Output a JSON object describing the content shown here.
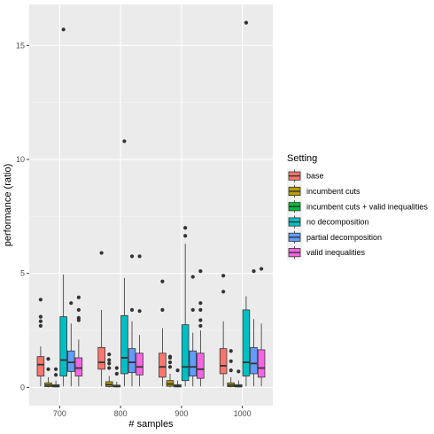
{
  "chart_data": {
    "type": "boxplot",
    "xlabel": "# samples",
    "ylabel": "performance (ratio)",
    "categories": [
      "700",
      "800",
      "900",
      "1000"
    ],
    "ylim": [
      -0.8,
      16.8
    ],
    "yticks": [
      0,
      5,
      10,
      15
    ],
    "grid": true,
    "legend": {
      "title": "Setting",
      "position": "right"
    },
    "series": [
      {
        "name": "base",
        "color": "#F8766D",
        "boxes": [
          {
            "min": 0.05,
            "q1": 0.5,
            "median": 1.0,
            "q3": 1.35,
            "max": 1.8,
            "outliers": [
              2.7,
              2.9,
              3.1,
              3.85
            ]
          },
          {
            "min": 0.05,
            "q1": 0.8,
            "median": 1.1,
            "q3": 1.75,
            "max": 3.4,
            "outliers": [
              5.9
            ]
          },
          {
            "min": 0.05,
            "q1": 0.45,
            "median": 0.9,
            "q3": 1.5,
            "max": 2.6,
            "outliers": [
              3.4,
              4.65
            ]
          },
          {
            "min": 0.05,
            "q1": 0.6,
            "median": 0.95,
            "q3": 1.7,
            "max": 2.9,
            "outliers": [
              4.2,
              4.9
            ]
          }
        ]
      },
      {
        "name": "incumbent cuts",
        "color": "#B79F00",
        "boxes": [
          {
            "min": 0.0,
            "q1": 0.03,
            "median": 0.1,
            "q3": 0.2,
            "max": 0.45,
            "outliers": [
              0.8,
              1.25
            ]
          },
          {
            "min": 0.0,
            "q1": 0.04,
            "median": 0.12,
            "q3": 0.25,
            "max": 0.5,
            "outliers": [
              0.85,
              1.05,
              1.2,
              1.45
            ]
          },
          {
            "min": 0.0,
            "q1": 0.05,
            "median": 0.15,
            "q3": 0.3,
            "max": 0.6,
            "outliers": [
              0.9,
              1.1,
              1.3,
              1.35
            ]
          },
          {
            "min": 0.0,
            "q1": 0.03,
            "median": 0.1,
            "q3": 0.2,
            "max": 0.45,
            "outliers": [
              0.75,
              1.15,
              1.6
            ]
          }
        ]
      },
      {
        "name": "incumbent cuts + valid inequalities",
        "color": "#00BA38",
        "boxes": [
          {
            "min": 0.0,
            "q1": 0.02,
            "median": 0.06,
            "q3": 0.12,
            "max": 0.3,
            "outliers": [
              0.55,
              0.8
            ]
          },
          {
            "min": 0.0,
            "q1": 0.02,
            "median": 0.05,
            "q3": 0.1,
            "max": 0.25,
            "outliers": [
              0.6,
              0.85
            ]
          },
          {
            "min": 0.0,
            "q1": 0.02,
            "median": 0.06,
            "q3": 0.12,
            "max": 0.3,
            "outliers": [
              0.75
            ]
          },
          {
            "min": 0.0,
            "q1": 0.02,
            "median": 0.06,
            "q3": 0.12,
            "max": 0.3,
            "outliers": [
              0.7
            ]
          }
        ]
      },
      {
        "name": "no decomposition",
        "color": "#00BFC4",
        "boxes": [
          {
            "min": 0.05,
            "q1": 0.5,
            "median": 1.2,
            "q3": 3.1,
            "max": 4.95,
            "outliers": [
              15.7
            ]
          },
          {
            "min": 0.05,
            "q1": 0.6,
            "median": 1.3,
            "q3": 3.15,
            "max": 4.8,
            "outliers": [
              10.8
            ]
          },
          {
            "min": 0.05,
            "q1": 0.3,
            "median": 0.9,
            "q3": 2.75,
            "max": 6.3,
            "outliers": [
              6.65,
              7.0
            ]
          },
          {
            "min": 0.05,
            "q1": 0.5,
            "median": 1.1,
            "q3": 3.4,
            "max": 4.0,
            "outliers": [
              16.0
            ]
          }
        ]
      },
      {
        "name": "partial decomposition",
        "color": "#619CFF",
        "boxes": [
          {
            "min": 0.05,
            "q1": 0.7,
            "median": 1.1,
            "q3": 1.6,
            "max": 2.8,
            "outliers": [
              3.7
            ]
          },
          {
            "min": 0.05,
            "q1": 0.65,
            "median": 1.1,
            "q3": 1.7,
            "max": 2.9,
            "outliers": [
              3.4,
              5.75
            ]
          },
          {
            "min": 0.05,
            "q1": 0.5,
            "median": 0.9,
            "q3": 1.6,
            "max": 2.4,
            "outliers": [
              3.4,
              4.85
            ]
          },
          {
            "min": 0.05,
            "q1": 0.6,
            "median": 1.05,
            "q3": 1.75,
            "max": 3.0,
            "outliers": [
              5.1
            ]
          }
        ]
      },
      {
        "name": "valid inequalities",
        "color": "#F564E3",
        "boxes": [
          {
            "min": 0.05,
            "q1": 0.5,
            "median": 0.85,
            "q3": 1.3,
            "max": 2.1,
            "outliers": [
              2.95,
              3.05,
              3.4,
              3.95
            ]
          },
          {
            "min": 0.05,
            "q1": 0.55,
            "median": 0.9,
            "q3": 1.5,
            "max": 2.3,
            "outliers": [
              3.35,
              5.75
            ]
          },
          {
            "min": 0.05,
            "q1": 0.4,
            "median": 0.8,
            "q3": 1.5,
            "max": 2.5,
            "outliers": [
              2.7,
              2.95,
              3.4,
              3.7,
              5.1
            ]
          },
          {
            "min": 0.05,
            "q1": 0.45,
            "median": 0.85,
            "q3": 1.65,
            "max": 2.8,
            "outliers": [
              5.2
            ]
          }
        ]
      }
    ]
  }
}
